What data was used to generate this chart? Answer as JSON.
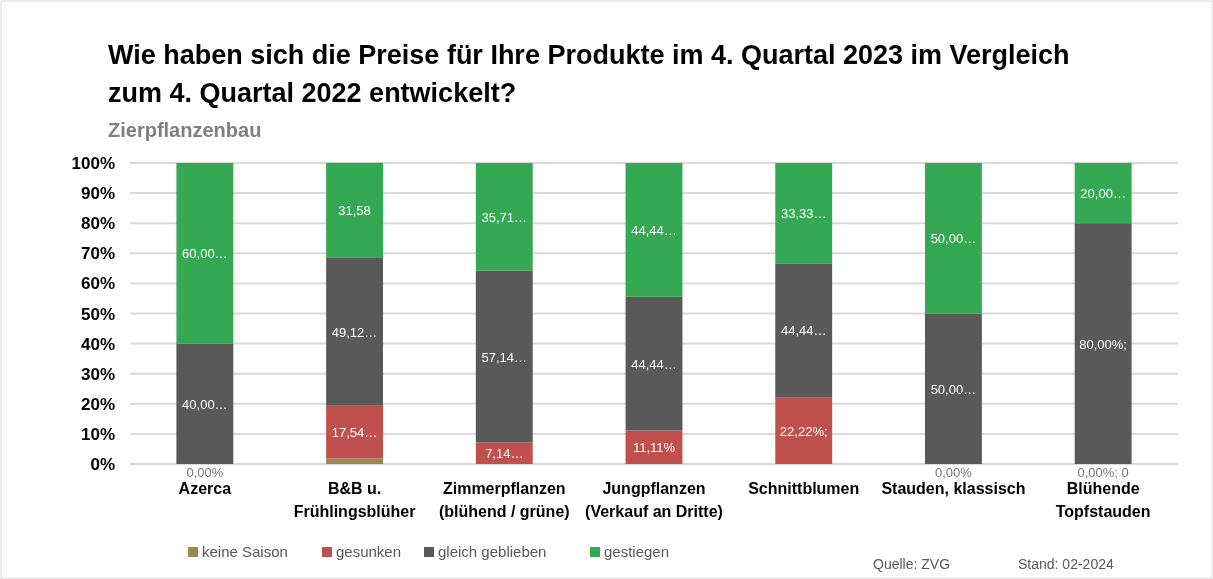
{
  "chart_data": {
    "type": "bar",
    "stacked": true,
    "title": "Wie haben sich die Preise für Ihre Produkte im 4. Quartal 2023 im Vergleich zum 4. Quartal 2022 entwickelt?",
    "subtitle": "Zierpflanzenbau",
    "categories": [
      "Azerca",
      "B&B u.\nFrühlingsblüher",
      "Zimmerpflanzen\n(blühend / grüne)",
      "Jungpflanzen\n(Verkauf an Dritte)",
      "Schnittblumen",
      "Stauden, klassisch",
      "Blühende\nTopfstauden"
    ],
    "series": [
      {
        "name": "keine Saison",
        "color": "#948a54",
        "values": [
          0,
          1.8,
          0,
          0,
          0,
          0,
          0
        ],
        "value_labels": [
          "0,00%",
          null,
          null,
          null,
          null,
          "0,00%",
          "0,00%; 0"
        ]
      },
      {
        "name": "gesunken",
        "color": "#c0504d",
        "values": [
          0,
          17.54,
          7.14,
          11.11,
          22.22,
          0,
          0
        ],
        "value_labels": [
          null,
          "17,54…",
          "7,14…",
          "11,11%",
          "22,22%;",
          null,
          null
        ]
      },
      {
        "name": "gleich geblieben",
        "color": "#595959",
        "values": [
          40,
          49.12,
          57.14,
          44.44,
          44.44,
          50,
          80
        ],
        "value_labels": [
          "40,00…",
          "49,12…",
          "57,14…",
          "44,44…",
          "44,44…",
          "50,00…",
          "80,00%;"
        ]
      },
      {
        "name": "gestiegen",
        "color": "#34a853",
        "values": [
          60,
          31.58,
          35.71,
          44.44,
          33.33,
          50,
          20
        ],
        "value_labels": [
          "60,00…",
          "31,58",
          "35,71…",
          "44,44…",
          "33,33…",
          "50,00…",
          "20,00…"
        ]
      }
    ],
    "ylim": [
      0,
      100
    ],
    "yticks": [
      {
        "value": 0,
        "label": "0%"
      },
      {
        "value": 10,
        "label": "10%"
      },
      {
        "value": 20,
        "label": "20%"
      },
      {
        "value": 30,
        "label": "30%"
      },
      {
        "value": 40,
        "label": "40%"
      },
      {
        "value": 50,
        "label": "50%"
      },
      {
        "value": 60,
        "label": "60%"
      },
      {
        "value": 70,
        "label": "70%"
      },
      {
        "value": 80,
        "label": "80%"
      },
      {
        "value": 90,
        "label": "90%"
      },
      {
        "value": 100,
        "label": "100%"
      }
    ],
    "grid": "y",
    "legend": "bottom",
    "annotations": [
      "Quelle: ZVG",
      "Stand: 02-2024"
    ]
  }
}
